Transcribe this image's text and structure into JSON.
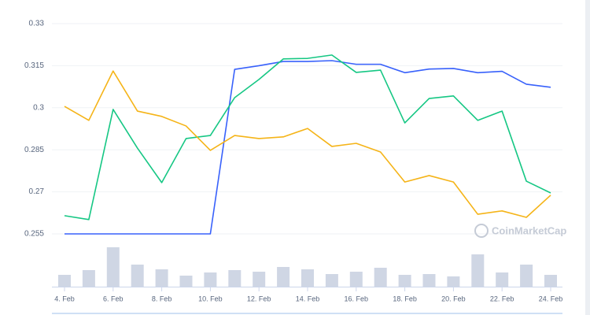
{
  "chart_data": {
    "type": "line",
    "categories": [
      "4. Feb",
      null,
      "6. Feb",
      null,
      "8. Feb",
      null,
      "10. Feb",
      null,
      "12. Feb",
      null,
      "14. Feb",
      null,
      "16. Feb",
      null,
      "18. Feb",
      null,
      "20. Feb",
      null,
      "22. Feb",
      null,
      "24. Feb"
    ],
    "series": [
      {
        "color": "#3861fb",
        "values": [
          0.255,
          0.255,
          0.255,
          0.255,
          0.255,
          0.255,
          0.255,
          0.3137,
          0.315,
          0.3165,
          0.3165,
          0.3168,
          0.3155,
          0.3155,
          0.3125,
          0.3138,
          0.314,
          0.3125,
          0.313,
          0.3084,
          0.3073
        ]
      },
      {
        "color": "#16c784",
        "values": [
          0.2615,
          0.2601,
          0.2994,
          0.2856,
          0.2733,
          0.289,
          0.2901,
          0.3036,
          0.3101,
          0.3174,
          0.3176,
          0.3188,
          0.3126,
          0.3134,
          0.2946,
          0.3033,
          0.3042,
          0.2955,
          0.2988,
          0.2738,
          0.2696
        ]
      },
      {
        "color": "#f5b418",
        "values": [
          0.3005,
          0.2955,
          0.3131,
          0.2988,
          0.2969,
          0.2935,
          0.2848,
          0.2901,
          0.289,
          0.2896,
          0.2926,
          0.2862,
          0.2873,
          0.2842,
          0.2735,
          0.2758,
          0.2735,
          0.262,
          0.2632,
          0.2609,
          0.2688
        ]
      }
    ],
    "volume": {
      "color": "#cfd6e4",
      "values": [
        15,
        21,
        50,
        28,
        22,
        14,
        18,
        21,
        19,
        25,
        22,
        16,
        19,
        24,
        15,
        16,
        13,
        41,
        18,
        28,
        15
      ]
    },
    "ylim": [
      0.255,
      0.33
    ],
    "yticks": [
      0.255,
      0.27,
      0.285,
      0.3,
      0.315,
      0.33
    ],
    "grid": true,
    "watermark": "CoinMarketCap"
  }
}
